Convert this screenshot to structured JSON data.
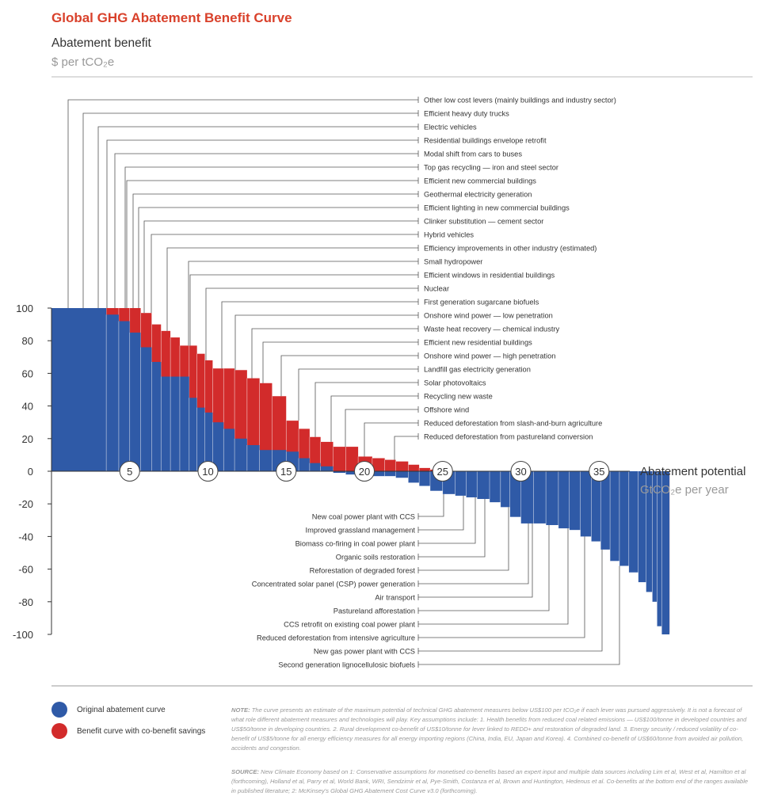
{
  "title": "Global GHG Abatement Benefit Curve",
  "y_axis": {
    "label": "Abatement benefit",
    "unit": "$ per tCO₂e"
  },
  "x_axis": {
    "label": "Abatement potential",
    "unit": "GtCO₂e per year"
  },
  "colors": {
    "original": "#2f5aa7",
    "benefit": "#d22b2b",
    "title": "#d9412b",
    "rule": "#bbbbbb"
  },
  "chart_data": {
    "type": "bar",
    "title": "Global GHG Abatement Benefit Curve",
    "xlabel": "Abatement potential (GtCO2e per year)",
    "ylabel": "Abatement benefit ($ per tCO2e)",
    "xlim": [
      0,
      39.5
    ],
    "ylim": [
      -100,
      100
    ],
    "y_ticks": [
      "100",
      "80",
      "60",
      "40",
      "20",
      "0",
      "-20",
      "-40",
      "-60",
      "-80",
      "-100"
    ],
    "x_ticks": [
      "5",
      "10",
      "15",
      "20",
      "25",
      "30",
      "35"
    ],
    "series": [
      {
        "name": "Original abatement curve",
        "x": [
          0,
          3.5,
          4.3,
          5.0,
          5.7,
          6.4,
          7.0,
          7.6,
          8.2,
          8.8,
          9.3,
          9.8,
          10.3,
          11.0,
          11.7,
          12.5,
          13.3,
          14.1,
          15.0,
          15.8,
          16.5,
          17.2,
          18.0,
          18.8,
          19.6,
          20.5,
          21.3,
          22.0,
          22.8,
          23.5,
          24.2,
          25.0,
          25.8,
          26.5,
          27.2,
          28.0,
          28.7,
          29.3,
          30.0,
          30.8,
          31.6,
          32.4,
          33.1,
          33.8,
          34.5,
          35.1,
          35.7,
          36.3,
          36.9,
          37.5,
          38.0,
          38.4,
          38.7,
          39.0
        ],
        "y": [
          100,
          96,
          92,
          85,
          76,
          67,
          58,
          58,
          58,
          45,
          39,
          36,
          30,
          26,
          20,
          16,
          13,
          13,
          12,
          8,
          5,
          3,
          -1,
          -2,
          -2,
          -3,
          -3,
          -4,
          -7,
          -9,
          -12,
          -14,
          -15,
          -16,
          -17,
          -19,
          -22,
          -28,
          -32,
          -32,
          -33,
          -35,
          -36,
          -40,
          -43,
          -48,
          -55,
          -58,
          -62,
          -68,
          -74,
          -80,
          -95,
          -100
        ]
      },
      {
        "name": "Benefit curve with co-benefit savings",
        "x": [
          0,
          3.5,
          4.3,
          5.0,
          5.7,
          6.4,
          7.0,
          7.6,
          8.2,
          8.8,
          9.3,
          9.8,
          10.3,
          11.0,
          11.7,
          12.5,
          13.3,
          14.1,
          15.0,
          15.8,
          16.5,
          17.2,
          18.0,
          18.8,
          19.6,
          20.5,
          21.3,
          22.0,
          22.8,
          23.5,
          24.2,
          25.0,
          25.8,
          26.5,
          27.2,
          28.0,
          28.7,
          29.3,
          30.0,
          30.8,
          31.6,
          32.4,
          33.1,
          33.8,
          34.5,
          35.1,
          35.7,
          36.3,
          36.9,
          37.5,
          38.0,
          38.4,
          38.7,
          39.0
        ],
        "y": [
          100,
          100,
          100,
          100,
          97,
          90,
          86,
          82,
          77,
          77,
          72,
          68,
          63,
          63,
          62,
          57,
          54,
          46,
          31,
          26,
          21,
          18,
          15,
          15,
          9,
          8,
          7,
          6,
          4,
          2,
          1,
          0,
          -1,
          -2,
          -3,
          -4,
          -6,
          -8,
          -9,
          -10,
          -12,
          -14,
          -17,
          -22,
          -27,
          -32,
          -38,
          -45,
          -52,
          -60,
          -68,
          -78,
          -88,
          -99
        ]
      }
    ],
    "top_annotations": [
      "Other low cost levers (mainly buildings and industry sector)",
      "Efficient heavy duty trucks",
      "Electric vehicles",
      "Residential buildings envelope retrofit",
      "Modal shift from cars to buses",
      "Top gas recycling — iron and steel sector",
      "Efficient new commercial buildings",
      "Geothermal electricity generation",
      "Efficient lighting in new commercial buildings",
      "Clinker substitution — cement sector",
      "Hybrid vehicles",
      "Efficiency improvements in other industry (estimated)",
      "Small hydropower",
      "Efficient windows in residential buildings",
      "Nuclear",
      "First generation sugarcane biofuels",
      "Onshore wind power — low penetration",
      "Waste heat recovery — chemical industry",
      "Efficient new residential buildings",
      "Onshore wind power — high penetration",
      "Landfill gas electricity  generation",
      "Solar photovoltaics",
      "Recycling new waste",
      "Offshore wind",
      "Reduced deforestation from slash-and-burn agriculture",
      "Reduced deforestation from pastureland conversion"
    ],
    "bottom_annotations": [
      "New coal power plant with CCS",
      "Improved grassland management",
      "Biomass co-firing in coal power plant",
      "Organic soils restoration",
      "Reforestation of degraded forest",
      "Concentrated solar panel (CSP) power generation",
      "Air transport",
      "Pastureland afforestation",
      "CCS retrofit on existing coal power plant",
      "Reduced deforestation from intensive agriculture",
      "New gas power plant with CCS",
      "Second generation lignocellulosic biofuels"
    ]
  },
  "legend": [
    {
      "label": "Original abatement curve"
    },
    {
      "label": "Benefit curve with co-benefit savings"
    }
  ],
  "note": {
    "label": "NOTE:",
    "text": " The curve presents an estimate of the maximum potential of technical GHG abatement measures below US$100 per tCO₂e if each lever was pursued aggressively. It is not a forecast of what role different abatement measures and technologies will play. Key assumptions include: 1. Health benefits from reduced coal related emissions — US$100/tonne in developed countries and US$50/tonne in developing countries. 2. Rural development co-benefit of US$10/tonne for lever linked to REDD+ and restoration of degraded land. 3. Energy security / reduced volatility of co-benefit of US$5/tonne for all energy efficiency measures for all energy importing regions (China, India, EU, Japan and Korea). 4. Combined co-benefit of US$60/tonne from avoided air pollution, accidents and congestion."
  },
  "source": {
    "label": "SOURCE:",
    "text": " New Climate Economy based on 1: Conservative assumptions for monetised co-benefits based an expert input and multiple data sources including Lim et al, West et al, Hamilton et al (forthcoming), Holland et al, Parry et al, World Bank, WRI, Sendzimir et al, Pye-Smith, Costanza et al, Brown and Huntington, Hedenus et al. Co-benefits at the bottom end of the ranges available in published literature; 2: McKinsey's Global GHG Abatement Cost Curve v3.0 (forthcoming)."
  }
}
